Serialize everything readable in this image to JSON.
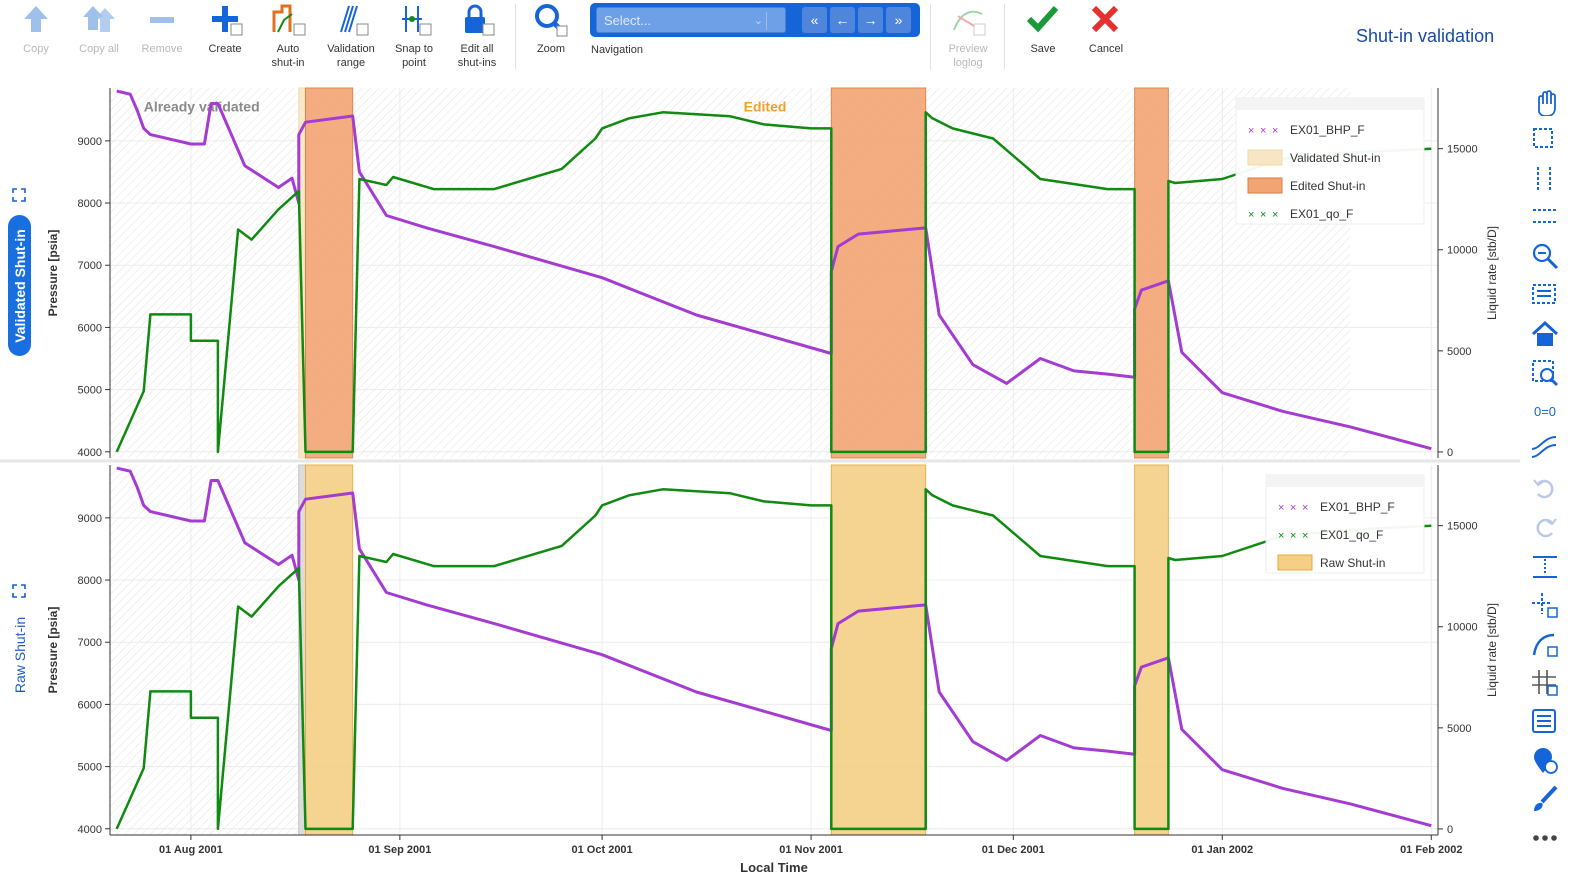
{
  "title": "Shut-in validation",
  "toolbar": {
    "buttons": [
      {
        "label": "Copy",
        "icon": "arrow-up-icon",
        "enabled": false
      },
      {
        "label": "Copy all",
        "icon": "double-arrow-up-icon",
        "enabled": false
      },
      {
        "label": "Remove",
        "icon": "minus-icon",
        "enabled": false
      },
      {
        "label": "Create",
        "icon": "plus-icon",
        "enabled": true
      },
      {
        "label": "Auto\nshut-in",
        "icon": "auto-shutin-icon",
        "enabled": true
      },
      {
        "label": "Validation\nrange",
        "icon": "validation-range-icon",
        "enabled": true
      },
      {
        "label": "Snap to\npoint",
        "icon": "snap-to-point-icon",
        "enabled": true
      },
      {
        "label": "Edit all\nshut-ins",
        "icon": "lock-icon",
        "enabled": true
      },
      {
        "label": "Zoom",
        "icon": "magnifier-icon",
        "enabled": true
      }
    ],
    "navigation": {
      "label": "Navigation",
      "placeholder": "Select...",
      "buttons": [
        "«",
        "←",
        "→",
        "»"
      ]
    },
    "preview": {
      "label": "Preview\nloglog",
      "enabled": false
    },
    "save": {
      "label": "Save",
      "icon": "checkmark-icon"
    },
    "cancel": {
      "label": "Cancel",
      "icon": "close-icon"
    }
  },
  "tabs": {
    "validated": "Validated Shut-in",
    "raw": "Raw Shut-in"
  },
  "sidebar_icons": [
    "pan-icon",
    "box-select-icon",
    "x-range-select-icon",
    "y-range-select-icon",
    "zoom-out-icon",
    "box-zoom-icon",
    "home-icon",
    "zoom-to-fit-icon",
    "zero-equals-zero-icon",
    "curve-smooth-icon",
    "undo-icon",
    "redo-icon",
    "vertical-range-icon",
    "crosshair-icon",
    "hover-curve-icon",
    "grid-icon",
    "legend-table-icon",
    "location-clock-icon",
    "paint-brush-icon",
    "more-icon"
  ],
  "colors": {
    "bhp": "#a43cd1",
    "qo": "#118a11",
    "validated": "#f6e6c4",
    "edited": "#f2a574",
    "raw": "#f4cf85",
    "accent": "#1565d8",
    "title": "#1a4aa0"
  },
  "chart_data": [
    {
      "type": "line",
      "name": "validated",
      "xlabel": "",
      "ylabel": "Pressure [psia]",
      "y2label": "Liquid rate [stb/D]",
      "x_ticks": [
        "01 Aug 2001",
        "01 Sep 2001",
        "01 Oct 2001",
        "01 Nov 2001",
        "01 Dec 2001",
        "01 Jan 2002",
        "01 Feb 2002"
      ],
      "x_range": [
        "2001-07-20",
        "2002-02-02"
      ],
      "ylim": [
        3900,
        9850
      ],
      "y_ticks": [
        4000,
        5000,
        6000,
        7000,
        8000,
        9000
      ],
      "y2lim": [
        -300,
        18000
      ],
      "y2_ticks": [
        0,
        5000,
        10000,
        15000
      ],
      "annotations": [
        {
          "text": "Already validated",
          "x": "2001-07-25",
          "y": 9550,
          "color": "#8a8a8a"
        },
        {
          "text": "Edited",
          "x": "2001-10-22",
          "y": 9550,
          "color": "#f0a030"
        }
      ],
      "legend": {
        "position": "top-right",
        "entries": [
          "EX01_BHP_F",
          "Validated Shut-in",
          "Edited Shut-in",
          "EX01_qo_F"
        ]
      },
      "validated_region": [
        "2001-07-20",
        "2002-01-20"
      ],
      "shutins": [
        {
          "start": "2001-08-17",
          "end": "2001-08-18",
          "kind": "validated"
        },
        {
          "start": "2001-08-18",
          "end": "2001-08-25",
          "kind": "edited"
        },
        {
          "start": "2001-11-04",
          "end": "2001-11-18",
          "kind": "edited"
        },
        {
          "start": "2001-12-19",
          "end": "2001-12-24",
          "kind": "edited"
        }
      ],
      "series": [
        {
          "name": "EX01_BHP_F",
          "axis": "left",
          "x": [
            "2001-07-21",
            "2001-07-23",
            "2001-07-24",
            "2001-07-25",
            "2001-07-26",
            "2001-08-01",
            "2001-08-03",
            "2001-08-04",
            "2001-08-05",
            "2001-08-09",
            "2001-08-14",
            "2001-08-16",
            "2001-08-17",
            "2001-08-17",
            "2001-08-18",
            "2001-08-25",
            "2001-08-26",
            "2001-08-30",
            "2001-09-05",
            "2001-09-15",
            "2001-10-01",
            "2001-10-15",
            "2001-11-04",
            "2001-11-04",
            "2001-11-05",
            "2001-11-08",
            "2001-11-18",
            "2001-11-20",
            "2001-11-25",
            "2001-11-30",
            "2001-12-05",
            "2001-12-10",
            "2001-12-15",
            "2001-12-19",
            "2001-12-19",
            "2001-12-20",
            "2001-12-24",
            "2001-12-26",
            "2002-01-01",
            "2002-01-10",
            "2002-01-20",
            "2002-02-01"
          ],
          "y": [
            9800,
            9750,
            9500,
            9200,
            9100,
            8950,
            8950,
            9600,
            9600,
            8600,
            8250,
            8400,
            8000,
            9100,
            9300,
            9400,
            8500,
            7800,
            7600,
            7300,
            6800,
            6200,
            5580,
            6900,
            7300,
            7500,
            7600,
            6200,
            5400,
            5100,
            5500,
            5300,
            5250,
            5200,
            6300,
            6600,
            6750,
            5600,
            4950,
            4650,
            4400,
            4050
          ]
        },
        {
          "name": "EX01_qo_F",
          "axis": "right",
          "x": [
            "2001-07-21",
            "2001-07-25",
            "2001-07-26",
            "2001-07-27",
            "2001-08-01",
            "2001-08-01",
            "2001-08-05",
            "2001-08-05",
            "2001-08-08",
            "2001-08-10",
            "2001-08-14",
            "2001-08-17",
            "2001-08-18",
            "2001-08-18",
            "2001-08-25",
            "2001-08-26",
            "2001-08-30",
            "2001-08-31",
            "2001-09-06",
            "2001-09-15",
            "2001-09-25",
            "2001-09-30",
            "2001-10-01",
            "2001-10-05",
            "2001-10-10",
            "2001-10-20",
            "2001-10-25",
            "2001-11-01",
            "2001-11-04",
            "2001-11-04",
            "2001-11-18",
            "2001-11-18",
            "2001-11-19",
            "2001-11-22",
            "2001-11-28",
            "2001-12-05",
            "2001-12-15",
            "2001-12-19",
            "2001-12-19",
            "2001-12-24",
            "2001-12-24",
            "2001-12-25",
            "2002-01-01",
            "2002-01-10",
            "2002-01-20",
            "2002-02-01"
          ],
          "y": [
            0,
            3000,
            6800,
            6800,
            6800,
            5500,
            5500,
            0,
            11000,
            10500,
            12000,
            12900,
            0,
            0,
            0,
            13500,
            13200,
            13600,
            13000,
            13000,
            14000,
            15500,
            16000,
            16500,
            16800,
            16600,
            16200,
            16000,
            16000,
            0,
            0,
            16800,
            16500,
            16000,
            15500,
            13500,
            13000,
            13000,
            0,
            0,
            13400,
            13300,
            13500,
            14500,
            14800,
            15000
          ]
        }
      ]
    },
    {
      "type": "line",
      "name": "raw",
      "xlabel": "Local Time",
      "ylabel": "Pressure [psia]",
      "y2label": "Liquid rate [stb/D]",
      "x_ticks": [
        "01 Aug 2001",
        "01 Sep 2001",
        "01 Oct 2001",
        "01 Nov 2001",
        "01 Dec 2001",
        "01 Jan 2002",
        "01 Feb 2002"
      ],
      "x_range": [
        "2001-07-20",
        "2002-02-02"
      ],
      "ylim": [
        3900,
        9850
      ],
      "y_ticks": [
        4000,
        5000,
        6000,
        7000,
        8000,
        9000
      ],
      "y2lim": [
        -300,
        18000
      ],
      "y2_ticks": [
        0,
        5000,
        10000,
        15000
      ],
      "annotations": [],
      "legend": {
        "position": "top-right",
        "entries": [
          "EX01_BHP_F",
          "EX01_qo_F",
          "Raw Shut-in"
        ]
      },
      "validated_region": [
        "2001-07-20",
        "2001-08-17"
      ],
      "shutins": [
        {
          "start": "2001-08-17",
          "end": "2001-08-18",
          "kind": "gray"
        },
        {
          "start": "2001-08-18",
          "end": "2001-08-25",
          "kind": "raw"
        },
        {
          "start": "2001-11-04",
          "end": "2001-11-18",
          "kind": "raw"
        },
        {
          "start": "2001-12-19",
          "end": "2001-12-24",
          "kind": "raw"
        }
      ],
      "series": [
        {
          "name": "EX01_BHP_F",
          "axis": "left",
          "x": [
            "2001-07-21",
            "2001-07-23",
            "2001-07-24",
            "2001-07-25",
            "2001-07-26",
            "2001-08-01",
            "2001-08-03",
            "2001-08-04",
            "2001-08-05",
            "2001-08-09",
            "2001-08-14",
            "2001-08-16",
            "2001-08-17",
            "2001-08-17",
            "2001-08-18",
            "2001-08-25",
            "2001-08-26",
            "2001-08-30",
            "2001-09-05",
            "2001-09-15",
            "2001-10-01",
            "2001-10-15",
            "2001-11-04",
            "2001-11-04",
            "2001-11-05",
            "2001-11-08",
            "2001-11-18",
            "2001-11-20",
            "2001-11-25",
            "2001-11-30",
            "2001-12-05",
            "2001-12-10",
            "2001-12-15",
            "2001-12-19",
            "2001-12-19",
            "2001-12-20",
            "2001-12-24",
            "2001-12-26",
            "2002-01-01",
            "2002-01-10",
            "2002-01-20",
            "2002-02-01"
          ],
          "y": [
            9800,
            9750,
            9500,
            9200,
            9100,
            8950,
            8950,
            9600,
            9600,
            8600,
            8250,
            8400,
            8000,
            9100,
            9300,
            9400,
            8500,
            7800,
            7600,
            7300,
            6800,
            6200,
            5580,
            6900,
            7300,
            7500,
            7600,
            6200,
            5400,
            5100,
            5500,
            5300,
            5250,
            5200,
            6300,
            6600,
            6750,
            5600,
            4950,
            4650,
            4400,
            4050
          ]
        },
        {
          "name": "EX01_qo_F",
          "axis": "right",
          "x": [
            "2001-07-21",
            "2001-07-25",
            "2001-07-26",
            "2001-07-27",
            "2001-08-01",
            "2001-08-01",
            "2001-08-05",
            "2001-08-05",
            "2001-08-08",
            "2001-08-10",
            "2001-08-14",
            "2001-08-17",
            "2001-08-18",
            "2001-08-18",
            "2001-08-25",
            "2001-08-26",
            "2001-08-30",
            "2001-08-31",
            "2001-09-06",
            "2001-09-15",
            "2001-09-25",
            "2001-09-30",
            "2001-10-01",
            "2001-10-05",
            "2001-10-10",
            "2001-10-20",
            "2001-10-25",
            "2001-11-01",
            "2001-11-04",
            "2001-11-04",
            "2001-11-18",
            "2001-11-18",
            "2001-11-19",
            "2001-11-22",
            "2001-11-28",
            "2001-12-05",
            "2001-12-15",
            "2001-12-19",
            "2001-12-19",
            "2001-12-24",
            "2001-12-24",
            "2001-12-25",
            "2002-01-01",
            "2002-01-10",
            "2002-01-20",
            "2002-02-01"
          ],
          "y": [
            0,
            3000,
            6800,
            6800,
            6800,
            5500,
            5500,
            0,
            11000,
            10500,
            12000,
            12900,
            0,
            0,
            0,
            13500,
            13200,
            13600,
            13000,
            13000,
            14000,
            15500,
            16000,
            16500,
            16800,
            16600,
            16200,
            16000,
            16000,
            0,
            0,
            16800,
            16500,
            16000,
            15500,
            13500,
            13000,
            13000,
            0,
            0,
            13400,
            13300,
            13500,
            14500,
            14800,
            15000
          ]
        }
      ]
    }
  ]
}
